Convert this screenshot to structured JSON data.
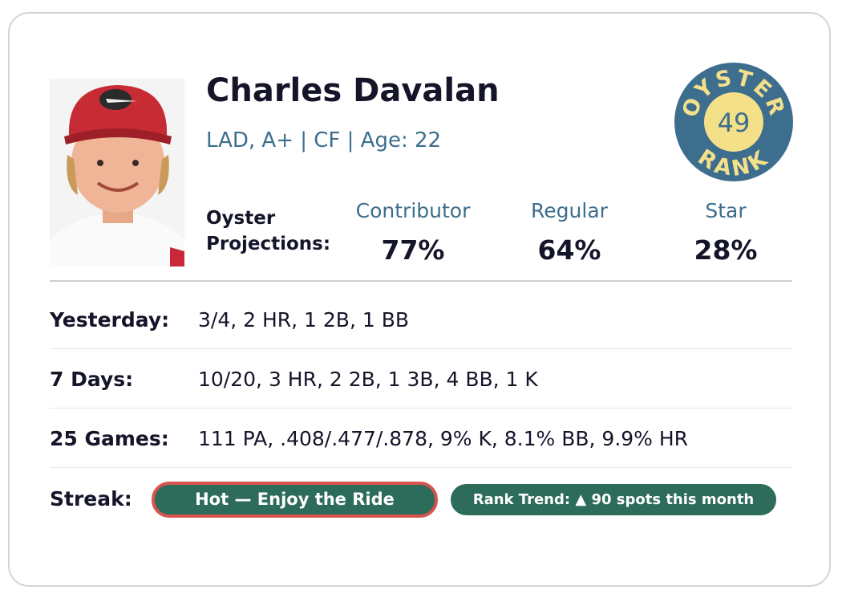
{
  "player": {
    "name": "Charles Davalan",
    "details": "LAD, A+ | CF | Age: 22"
  },
  "projections": {
    "label": "Oyster Projections:",
    "items": [
      {
        "label": "Contributor",
        "value": "77%"
      },
      {
        "label": "Regular",
        "value": "64%"
      },
      {
        "label": "Star",
        "value": "28%"
      }
    ]
  },
  "badge": {
    "top": "OYSTER",
    "rank": "49",
    "bottom": "RANK"
  },
  "stats": [
    {
      "label": "Yesterday:",
      "value": "3/4, 2 HR, 1 2B, 1 BB"
    },
    {
      "label": "7 Days:",
      "value": "10/20, 3 HR, 2 2B, 1 3B, 4 BB, 1 K"
    },
    {
      "label": "25 Games:",
      "value": "111 PA, .408/.477/.878, 9% K, 8.1% BB, 9.9% HR"
    }
  ],
  "streak": {
    "label": "Streak:",
    "status": "Hot — Enjoy the Ride",
    "trend": "Rank Trend: ▲ 90 spots this month"
  }
}
